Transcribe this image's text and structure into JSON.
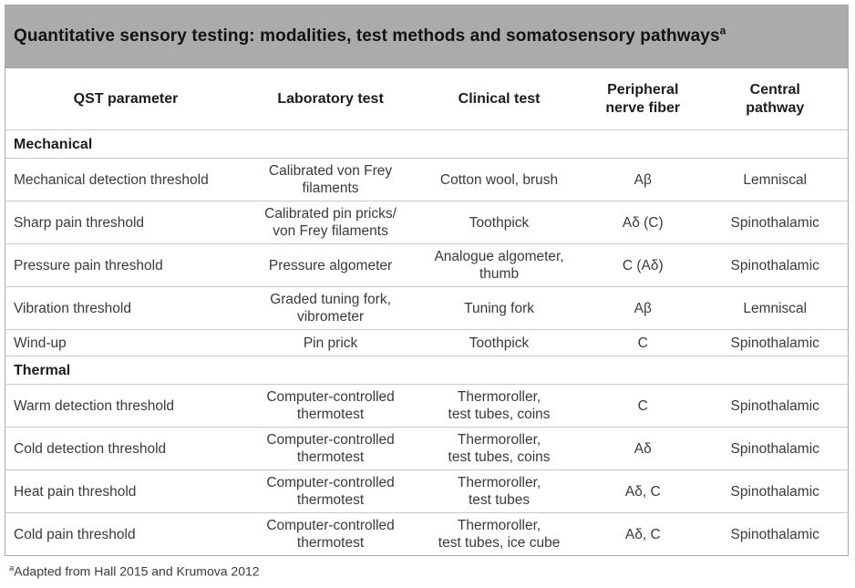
{
  "title": {
    "text": "Quantitative sensory testing: modalities, test methods and somatosensory pathways",
    "superscript": "a"
  },
  "table": {
    "columns": [
      "QST parameter",
      "Laboratory test",
      "Clinical test",
      "Peripheral\nnerve fiber",
      "Central\npathway"
    ],
    "rows": [
      {
        "type": "section",
        "label": "Mechanical"
      },
      {
        "type": "data",
        "cells": [
          "Mechanical detection threshold",
          "Calibrated von Frey\nfilaments",
          "Cotton wool, brush",
          "Aβ",
          "Lemniscal"
        ]
      },
      {
        "type": "data",
        "cells": [
          "Sharp pain threshold",
          "Calibrated pin pricks/\nvon Frey filaments",
          "Toothpick",
          "Aδ (C)",
          "Spinothalamic"
        ]
      },
      {
        "type": "data",
        "cells": [
          "Pressure pain threshold",
          "Pressure algometer",
          "Analogue algometer,\nthumb",
          "C (Aδ)",
          "Spinothalamic"
        ]
      },
      {
        "type": "data",
        "cells": [
          "Vibration threshold",
          "Graded tuning fork,\nvibrometer",
          "Tuning fork",
          "Aβ",
          "Lemniscal"
        ]
      },
      {
        "type": "data",
        "compact": true,
        "cells": [
          "Wind-up",
          "Pin prick",
          "Toothpick",
          "C",
          "Spinothalamic"
        ]
      },
      {
        "type": "section",
        "label": "Thermal"
      },
      {
        "type": "data",
        "cells": [
          "Warm detection threshold",
          "Computer-controlled\nthermotest",
          "Thermoroller,\ntest tubes, coins",
          "C",
          "Spinothalamic"
        ]
      },
      {
        "type": "data",
        "cells": [
          "Cold detection threshold",
          "Computer-controlled\nthermotest",
          "Thermoroller,\ntest tubes, coins",
          "Aδ",
          "Spinothalamic"
        ]
      },
      {
        "type": "data",
        "cells": [
          "Heat pain threshold",
          "Computer-controlled\nthermotest",
          "Thermoroller,\ntest tubes",
          "Aδ, C",
          "Spinothalamic"
        ]
      },
      {
        "type": "data",
        "cells": [
          "Cold pain threshold",
          "Computer-controlled\nthermotest",
          "Thermoroller,\ntest tubes, ice cube",
          "Aδ, C",
          "Spinothalamic"
        ]
      }
    ]
  },
  "footnote": {
    "superscript": "a",
    "text": "Adapted from Hall 2015 and Krumova 2012"
  },
  "colors": {
    "title_bar_bg": "#ababab",
    "outer_border": "#a9a9a9",
    "row_line": "#c6c6c6",
    "text": "#3a3a3a",
    "title_text": "#121212"
  }
}
